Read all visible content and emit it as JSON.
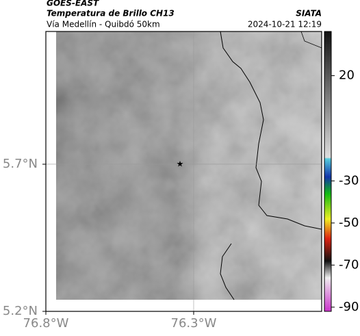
{
  "header": {
    "title": "GOES-EAST",
    "subtitle": "Temperatura de Brillo CH13",
    "source": "SIATA",
    "location": "Vía Medellín - Quibdó 50km",
    "timestamp": "2024-10-21 12:19"
  },
  "map": {
    "xlim": [
      -76.8,
      -75.867
    ],
    "ylim": [
      5.2,
      6.151
    ],
    "xticks": [
      {
        "value": -76.8,
        "label": "76.8°W"
      },
      {
        "value": -76.3,
        "label": "76.3°W"
      }
    ],
    "yticks": [
      {
        "value": 5.2,
        "label": "5.2°N"
      },
      {
        "value": 5.7,
        "label": "5.7°N"
      }
    ]
  },
  "colorbar": {
    "lim": [
      -92,
      41
    ],
    "ticks": [
      20,
      -30,
      -50,
      -70,
      -90
    ]
  }
}
